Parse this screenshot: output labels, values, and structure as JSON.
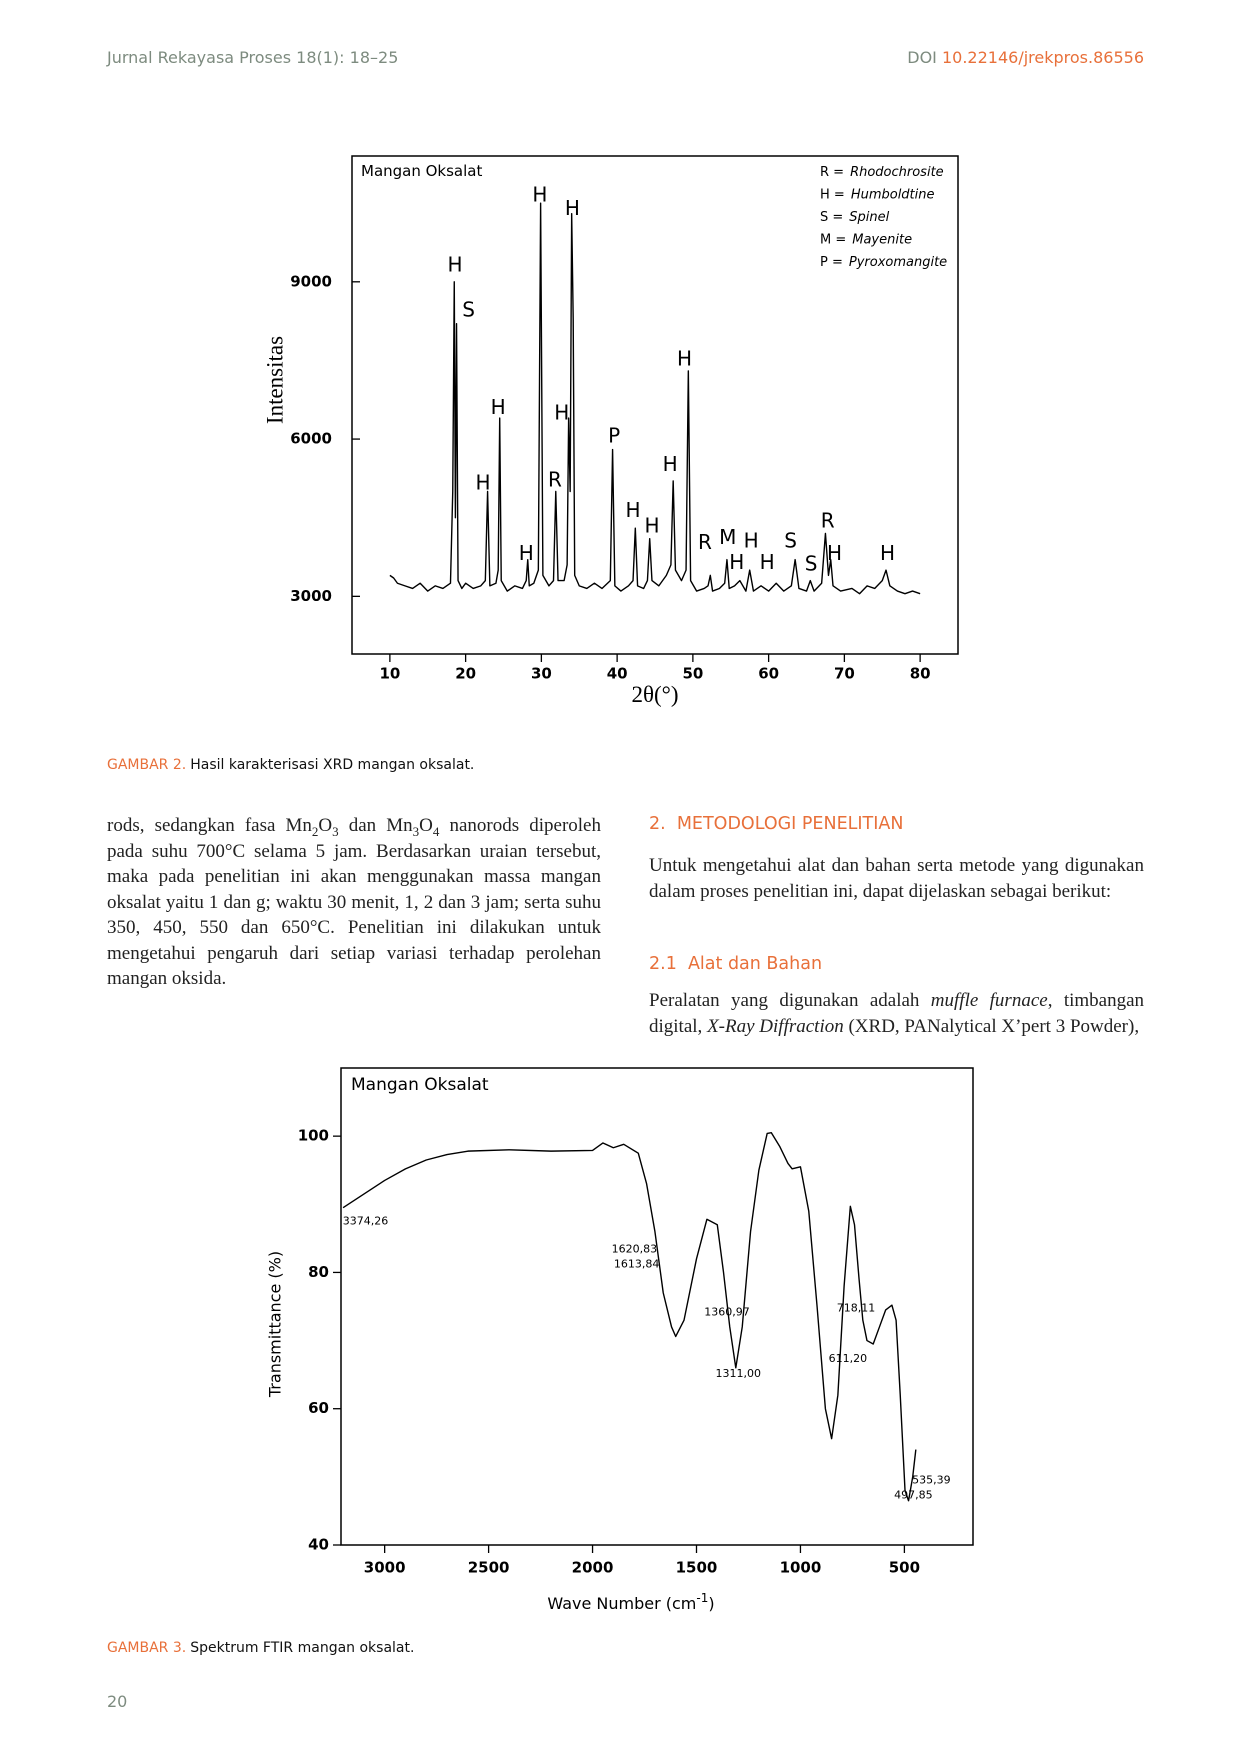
{
  "header": {
    "journal": "Jurnal Rekayasa Proses 18(1): 18–25",
    "doi_label": "DOI",
    "doi": "10.22146/jrekpros.86556"
  },
  "chart_data": [
    {
      "type": "line",
      "title": "Mangan Oksalat",
      "x_label": "2θ(°)",
      "y_label": "Intensitas",
      "color": "#000000",
      "xlim": [
        5,
        85
      ],
      "ylim": [
        1900,
        11400
      ],
      "xticks": [
        10,
        20,
        30,
        40,
        50,
        60,
        70,
        80
      ],
      "yticks": [
        3000,
        6000,
        9000
      ],
      "legend": [
        {
          "key": "R =",
          "name": "Rhodochrosite"
        },
        {
          "key": "H =",
          "name": "Humboldtine"
        },
        {
          "key": "S =",
          "name": "Spinel"
        },
        {
          "key": "M =",
          "name": "Mayenite"
        },
        {
          "key": "P =",
          "name": "Pyroxomangite"
        }
      ],
      "x": [
        10,
        10.5,
        11,
        12,
        13,
        14,
        15,
        16,
        17,
        18,
        18.3,
        18.5,
        18.65,
        18.8,
        19,
        19.5,
        20,
        21,
        22,
        22.6,
        22.9,
        23.2,
        24,
        24.3,
        24.5,
        24.7,
        25.5,
        26.5,
        27.5,
        28,
        28.2,
        28.4,
        29,
        29.6,
        29.9,
        30.2,
        31,
        31.6,
        31.9,
        32.2,
        33,
        33.4,
        33.6,
        33.8,
        34,
        34.2,
        34.4,
        35,
        36,
        37,
        38,
        39.1,
        39.4,
        39.7,
        40.5,
        41.5,
        42.1,
        42.4,
        42.7,
        43.5,
        44,
        44.3,
        44.6,
        45.5,
        46.5,
        47.1,
        47.4,
        47.7,
        48.5,
        49.1,
        49.4,
        49.7,
        50.5,
        51.5,
        52,
        52.3,
        52.6,
        53.5,
        54.2,
        54.5,
        54.8,
        55.5,
        56.2,
        57,
        57.5,
        58,
        59,
        60,
        61,
        62,
        63,
        63.5,
        64,
        65,
        65.5,
        66,
        67,
        67.5,
        67.9,
        68.2,
        68.5,
        69.5,
        71,
        72,
        73,
        74,
        75,
        75.5,
        76,
        77,
        78,
        79,
        80
      ],
      "values": [
        3400,
        3350,
        3250,
        3200,
        3150,
        3250,
        3100,
        3200,
        3150,
        3250,
        5000,
        9000,
        4500,
        8200,
        3300,
        3150,
        3250,
        3150,
        3200,
        3300,
        5000,
        3200,
        3250,
        3500,
        6400,
        3300,
        3100,
        3200,
        3150,
        3300,
        3700,
        3200,
        3250,
        3500,
        10500,
        3400,
        3200,
        3300,
        5000,
        3300,
        3300,
        3600,
        6400,
        5000,
        10300,
        8300,
        3400,
        3200,
        3150,
        3250,
        3150,
        3300,
        5800,
        3200,
        3100,
        3200,
        3300,
        4300,
        3200,
        3150,
        3300,
        4100,
        3300,
        3200,
        3400,
        3600,
        5200,
        3500,
        3300,
        3500,
        7300,
        3300,
        3100,
        3150,
        3200,
        3400,
        3100,
        3150,
        3250,
        3700,
        3150,
        3200,
        3300,
        3100,
        3500,
        3100,
        3200,
        3100,
        3250,
        3100,
        3200,
        3700,
        3150,
        3100,
        3300,
        3100,
        3250,
        4200,
        3400,
        3700,
        3200,
        3100,
        3150,
        3050,
        3200,
        3150,
        3300,
        3500,
        3200,
        3100,
        3050,
        3100,
        3050
      ],
      "annotations": [
        {
          "text": "H",
          "x": 18.6,
          "y": 9300
        },
        {
          "text": "S",
          "x": 20.4,
          "y": 8440
        },
        {
          "text": "H",
          "x": 22.3,
          "y": 5140
        },
        {
          "text": "H",
          "x": 24.3,
          "y": 6580
        },
        {
          "text": "H",
          "x": 28.0,
          "y": 3800
        },
        {
          "text": "H",
          "x": 29.8,
          "y": 10640
        },
        {
          "text": "R",
          "x": 31.8,
          "y": 5200
        },
        {
          "text": "H",
          "x": 32.7,
          "y": 6480
        },
        {
          "text": "H",
          "x": 34.1,
          "y": 10380
        },
        {
          "text": "P",
          "x": 39.6,
          "y": 6040
        },
        {
          "text": "H",
          "x": 42.1,
          "y": 4620
        },
        {
          "text": "H",
          "x": 44.6,
          "y": 4320
        },
        {
          "text": "H",
          "x": 47.0,
          "y": 5500
        },
        {
          "text": "H",
          "x": 48.9,
          "y": 7510
        },
        {
          "text": "R",
          "x": 51.6,
          "y": 4010
        },
        {
          "text": "M",
          "x": 54.6,
          "y": 4100
        },
        {
          "text": "H",
          "x": 55.8,
          "y": 3630
        },
        {
          "text": "H",
          "x": 57.7,
          "y": 4040
        },
        {
          "text": "H",
          "x": 59.8,
          "y": 3630
        },
        {
          "text": "S",
          "x": 62.9,
          "y": 4040
        },
        {
          "text": "S",
          "x": 65.6,
          "y": 3600
        },
        {
          "text": "R",
          "x": 67.8,
          "y": 4420
        },
        {
          "text": "H",
          "x": 68.7,
          "y": 3800
        },
        {
          "text": "H",
          "x": 75.7,
          "y": 3800
        }
      ]
    },
    {
      "type": "line",
      "title": "Mangan Oksalat",
      "x_label": [
        "Wave Number (cm",
        "-1",
        ")"
      ],
      "y_label": "Transmittance (%)",
      "color": "#000000",
      "xlim": [
        3210,
        170
      ],
      "ylim": [
        40,
        110
      ],
      "xticks": [
        3000,
        2500,
        2000,
        1500,
        1000,
        500
      ],
      "yticks": [
        40,
        60,
        80,
        100
      ],
      "x": [
        3200,
        3100,
        3000,
        2900,
        2800,
        2700,
        2600,
        2400,
        2200,
        2000,
        1950,
        1900,
        1850,
        1780,
        1740,
        1700,
        1660,
        1620,
        1600,
        1560,
        1500,
        1450,
        1400,
        1370,
        1340,
        1311,
        1280,
        1240,
        1200,
        1160,
        1140,
        1100,
        1060,
        1040,
        1000,
        960,
        920,
        880,
        850,
        820,
        790,
        760,
        740,
        718,
        700,
        680,
        650,
        620,
        590,
        560,
        540,
        520,
        497,
        480,
        460,
        445
      ],
      "values": [
        89.5,
        91.5,
        93.5,
        95.2,
        96.5,
        97.3,
        97.8,
        98,
        97.8,
        97.9,
        99,
        98.3,
        98.8,
        97.5,
        93,
        86,
        77,
        72,
        70.6,
        73,
        82,
        87.8,
        87,
        80,
        72,
        66,
        72,
        86,
        95,
        100.4,
        100.5,
        98.5,
        96,
        95.2,
        95.5,
        89,
        75,
        60,
        55.6,
        62,
        78,
        89.7,
        87,
        79,
        73,
        70,
        69.5,
        72,
        74.5,
        75.2,
        73,
        62,
        48,
        46.5,
        50,
        54
      ],
      "annotations": [
        {
          "text": "3374,26",
          "x": 3092,
          "y": 87.5
        },
        {
          "text": "1620,83",
          "x": 1799,
          "y": 83.4
        },
        {
          "text": "1613,84",
          "x": 1788,
          "y": 81.2
        },
        {
          "text": "1360,97",
          "x": 1353,
          "y": 74.1
        },
        {
          "text": "1311,00",
          "x": 1299,
          "y": 65.1
        },
        {
          "text": "718,11",
          "x": 733,
          "y": 74.7
        },
        {
          "text": "611,20",
          "x": 772,
          "y": 67.3
        },
        {
          "text": "535,39",
          "x": 370,
          "y": 49.5
        },
        {
          "text": "497,85",
          "x": 457,
          "y": 47.3
        }
      ]
    }
  ],
  "captions": [
    {
      "label": "GAMBAR 2.",
      "text": "Hasil karakterisasi XRD mangan oksalat."
    },
    {
      "label": "GAMBAR 3.",
      "text": "Spektrum FTIR mangan oksalat."
    }
  ],
  "left_paragraph": [
    "rods, sedangkan fasa Mn",
    "2",
    "O",
    "3",
    " dan Mn",
    "3",
    "O",
    "4",
    " nanorods diperoleh pada suhu 700°C selama 5 jam. Berdasarkan uraian tersebut, maka pada penelitian ini akan menggunakan massa mangan oksalat yaitu 1 dan g; waktu 30 menit, 1, 2 dan 3 jam; serta suhu 350, 450, 550 dan 650°C. Penelitian ini dilakukan untuk mengetahui pengaruh dari setiap variasi terhadap perolehan mangan oksida."
  ],
  "section_heading": "2.  METODOLOGI PENELITIAN",
  "section_paragraph": "Untuk mengetahui alat dan bahan serta metode yang digunakan dalam proses penelitian ini, dapat dijelaskan sebagai berikut:",
  "subsection_heading": "2.1  Alat dan Bahan",
  "subsection_paragraph": [
    "Peralatan yang digunakan adalah ",
    "muffle furnace",
    ", timbangan digital, ",
    "X-Ray Diffraction",
    " (XRD, PANalytical X’pert 3 Powder),"
  ],
  "page_number": "20"
}
